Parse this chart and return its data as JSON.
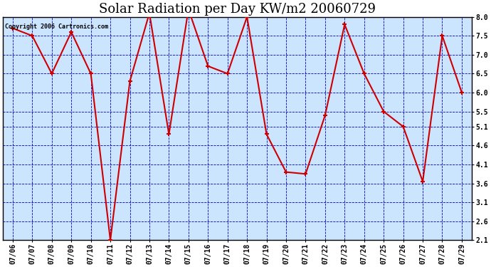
{
  "title": "Solar Radiation per Day KW/m2 20060729",
  "copyright": "Copyright 2006 Cartronics.com",
  "dates": [
    "07/06",
    "07/07",
    "07/08",
    "07/09",
    "07/10",
    "07/11",
    "07/12",
    "07/13",
    "07/14",
    "07/15",
    "07/16",
    "07/17",
    "07/18",
    "07/19",
    "07/20",
    "07/21",
    "07/22",
    "07/23",
    "07/24",
    "07/25",
    "07/26",
    "07/27",
    "07/28",
    "07/29"
  ],
  "values": [
    7.7,
    7.5,
    6.5,
    7.6,
    6.5,
    2.1,
    6.3,
    8.1,
    4.9,
    8.2,
    6.7,
    6.5,
    8.0,
    4.9,
    3.9,
    3.85,
    5.4,
    7.8,
    6.5,
    5.5,
    5.1,
    3.65,
    7.5,
    6.0
  ],
  "line_color": "#cc0000",
  "marker_color": "#cc0000",
  "outer_bg_color": "#ffffff",
  "plot_bg_color": "#cce5ff",
  "grid_color": "#0000cc",
  "axis_color": "#000000",
  "text_color": "#000000",
  "ylim": [
    2.1,
    8.0
  ],
  "yticks": [
    2.1,
    2.6,
    3.1,
    3.6,
    4.1,
    4.6,
    5.1,
    5.5,
    6.0,
    6.5,
    7.0,
    7.5,
    8.0
  ],
  "title_fontsize": 13,
  "copyright_fontsize": 6,
  "tick_fontsize": 7,
  "line_width": 1.5,
  "marker_size": 5
}
